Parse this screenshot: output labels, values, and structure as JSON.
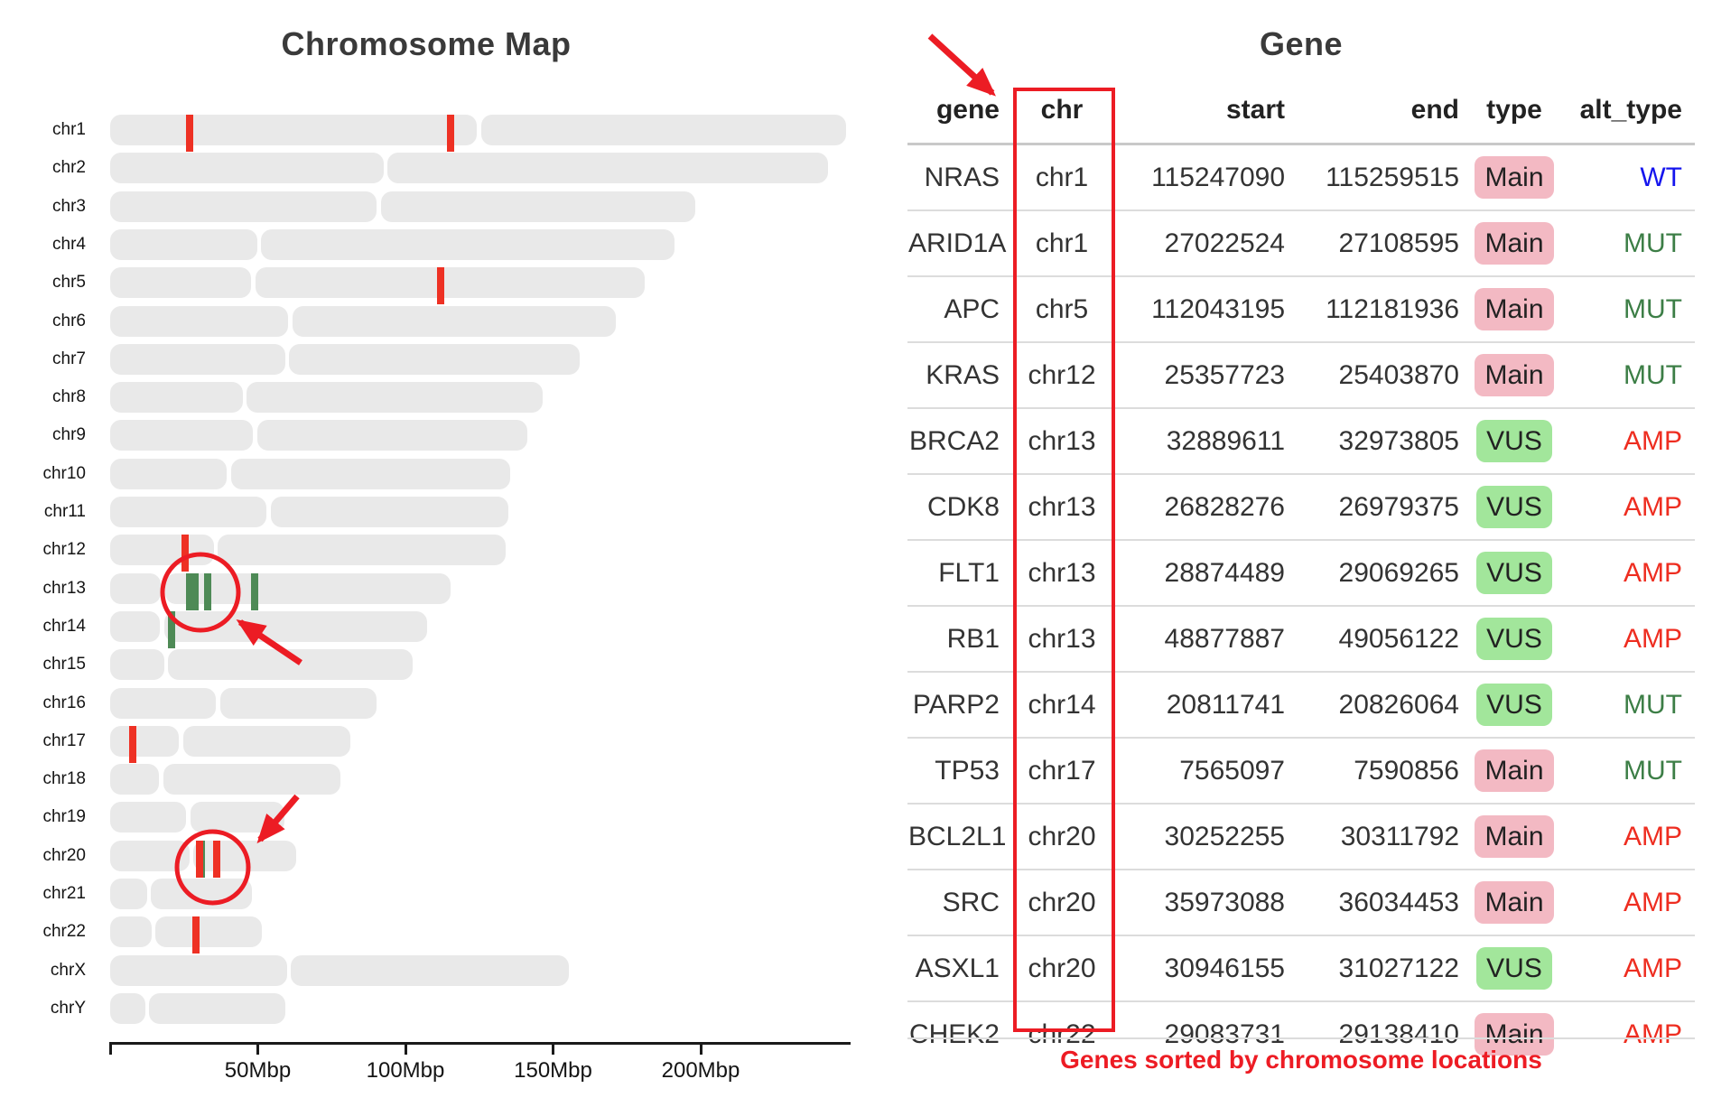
{
  "map": {
    "title": "Chromosome Map"
  },
  "table": {
    "title": "Gene",
    "columns": [
      "gene",
      "chr",
      "start",
      "end",
      "type",
      "alt_type"
    ],
    "rows": [
      {
        "gene": "NRAS",
        "chr": "chr1",
        "start": "115247090",
        "end": "115259515",
        "type": "Main",
        "alt_type": "WT"
      },
      {
        "gene": "ARID1A",
        "chr": "chr1",
        "start": "27022524",
        "end": "27108595",
        "type": "Main",
        "alt_type": "MUT"
      },
      {
        "gene": "APC",
        "chr": "chr5",
        "start": "112043195",
        "end": "112181936",
        "type": "Main",
        "alt_type": "MUT"
      },
      {
        "gene": "KRAS",
        "chr": "chr12",
        "start": "25357723",
        "end": "25403870",
        "type": "Main",
        "alt_type": "MUT"
      },
      {
        "gene": "BRCA2",
        "chr": "chr13",
        "start": "32889611",
        "end": "32973805",
        "type": "VUS",
        "alt_type": "AMP"
      },
      {
        "gene": "CDK8",
        "chr": "chr13",
        "start": "26828276",
        "end": "26979375",
        "type": "VUS",
        "alt_type": "AMP"
      },
      {
        "gene": "FLT1",
        "chr": "chr13",
        "start": "28874489",
        "end": "29069265",
        "type": "VUS",
        "alt_type": "AMP"
      },
      {
        "gene": "RB1",
        "chr": "chr13",
        "start": "48877887",
        "end": "49056122",
        "type": "VUS",
        "alt_type": "AMP"
      },
      {
        "gene": "PARP2",
        "chr": "chr14",
        "start": "20811741",
        "end": "20826064",
        "type": "VUS",
        "alt_type": "MUT"
      },
      {
        "gene": "TP53",
        "chr": "chr17",
        "start": "7565097",
        "end": "7590856",
        "type": "Main",
        "alt_type": "MUT"
      },
      {
        "gene": "BCL2L1",
        "chr": "chr20",
        "start": "30252255",
        "end": "30311792",
        "type": "Main",
        "alt_type": "AMP"
      },
      {
        "gene": "SRC",
        "chr": "chr20",
        "start": "35973088",
        "end": "36034453",
        "type": "Main",
        "alt_type": "AMP"
      },
      {
        "gene": "ASXL1",
        "chr": "chr20",
        "start": "30946155",
        "end": "31027122",
        "type": "VUS",
        "alt_type": "AMP"
      },
      {
        "gene": "CHEK2",
        "chr": "chr22",
        "start": "29083731",
        "end": "29138410",
        "type": "Main",
        "alt_type": "AMP"
      }
    ],
    "caption": "Genes sorted by chromosome locations"
  },
  "colors": {
    "chromosome_bar": "#e9e9e9",
    "marker_main": "#ee3124",
    "marker_vus": "#4e8a56",
    "annotation_red": "#ec1c24",
    "caption_red": "#ed1c24",
    "type_badge": {
      "Main": "#f3b9c3",
      "VUS": "#a2e69b"
    },
    "alt_type_text": {
      "WT": "#1515ee",
      "MUT": "#3c7e46",
      "AMP": "#ee2d20"
    }
  },
  "chart_data": {
    "type": "karyotype",
    "title": "Chromosome Map",
    "x_unit": "Mbp",
    "x_range_mbp": [
      0,
      250
    ],
    "axis_ticks": [
      {
        "mbp": 0,
        "label": ""
      },
      {
        "mbp": 50,
        "label": "50Mbp"
      },
      {
        "mbp": 100,
        "label": "100Mbp"
      },
      {
        "mbp": 150,
        "label": "150Mbp"
      },
      {
        "mbp": 200,
        "label": "200Mbp"
      }
    ],
    "chromosomes": [
      {
        "name": "chr1",
        "length_mbp": 249.25,
        "centromere_mbp": 125.0
      },
      {
        "name": "chr2",
        "length_mbp": 243.2,
        "centromere_mbp": 93.3
      },
      {
        "name": "chr3",
        "length_mbp": 198.02,
        "centromere_mbp": 91.0
      },
      {
        "name": "chr4",
        "length_mbp": 191.15,
        "centromere_mbp": 50.4
      },
      {
        "name": "chr5",
        "length_mbp": 180.92,
        "centromere_mbp": 48.4
      },
      {
        "name": "chr6",
        "length_mbp": 171.12,
        "centromere_mbp": 61.0
      },
      {
        "name": "chr7",
        "length_mbp": 159.14,
        "centromere_mbp": 59.9
      },
      {
        "name": "chr8",
        "length_mbp": 146.36,
        "centromere_mbp": 45.6
      },
      {
        "name": "chr9",
        "length_mbp": 141.21,
        "centromere_mbp": 49.0
      },
      {
        "name": "chr10",
        "length_mbp": 135.53,
        "centromere_mbp": 40.2
      },
      {
        "name": "chr11",
        "length_mbp": 135.01,
        "centromere_mbp": 53.7
      },
      {
        "name": "chr12",
        "length_mbp": 133.85,
        "centromere_mbp": 35.8
      },
      {
        "name": "chr13",
        "length_mbp": 115.17,
        "centromere_mbp": 17.9
      },
      {
        "name": "chr14",
        "length_mbp": 107.35,
        "centromere_mbp": 17.6
      },
      {
        "name": "chr15",
        "length_mbp": 102.53,
        "centromere_mbp": 19.0
      },
      {
        "name": "chr16",
        "length_mbp": 90.35,
        "centromere_mbp": 36.6
      },
      {
        "name": "chr17",
        "length_mbp": 81.2,
        "centromere_mbp": 24.0
      },
      {
        "name": "chr18",
        "length_mbp": 78.08,
        "centromere_mbp": 17.2
      },
      {
        "name": "chr19",
        "length_mbp": 59.13,
        "centromere_mbp": 26.5
      },
      {
        "name": "chr20",
        "length_mbp": 63.03,
        "centromere_mbp": 27.5
      },
      {
        "name": "chr21",
        "length_mbp": 48.13,
        "centromere_mbp": 13.2
      },
      {
        "name": "chr22",
        "length_mbp": 51.3,
        "centromere_mbp": 14.7
      },
      {
        "name": "chrX",
        "length_mbp": 155.27,
        "centromere_mbp": 60.6
      },
      {
        "name": "chrY",
        "length_mbp": 59.37,
        "centromere_mbp": 12.5
      }
    ],
    "markers": [
      {
        "gene": "BRCA2",
        "chr": "chr13",
        "pos_mbp": 32.89,
        "color_key": "vus"
      },
      {
        "gene": "CDK8",
        "chr": "chr13",
        "pos_mbp": 26.828,
        "color_key": "vus"
      },
      {
        "gene": "FLT1",
        "chr": "chr13",
        "pos_mbp": 28.874,
        "color_key": "vus"
      },
      {
        "gene": "RB1",
        "chr": "chr13",
        "pos_mbp": 48.878,
        "color_key": "vus"
      },
      {
        "gene": "PARP2",
        "chr": "chr14",
        "pos_mbp": 20.812,
        "color_key": "vus"
      },
      {
        "gene": "ASXL1",
        "chr": "chr20",
        "pos_mbp": 30.946,
        "color_key": "vus"
      },
      {
        "gene": "NRAS",
        "chr": "chr1",
        "pos_mbp": 115.247,
        "color_key": "main"
      },
      {
        "gene": "ARID1A",
        "chr": "chr1",
        "pos_mbp": 27.023,
        "color_key": "main"
      },
      {
        "gene": "APC",
        "chr": "chr5",
        "pos_mbp": 112.043,
        "color_key": "main"
      },
      {
        "gene": "KRAS",
        "chr": "chr12",
        "pos_mbp": 25.358,
        "color_key": "main"
      },
      {
        "gene": "TP53",
        "chr": "chr17",
        "pos_mbp": 7.565,
        "color_key": "main"
      },
      {
        "gene": "BCL2L1",
        "chr": "chr20",
        "pos_mbp": 30.252,
        "color_key": "main"
      },
      {
        "gene": "SRC",
        "chr": "chr20",
        "pos_mbp": 35.973,
        "color_key": "main"
      },
      {
        "gene": "CHEK2",
        "chr": "chr22",
        "pos_mbp": 29.084,
        "color_key": "main"
      }
    ]
  }
}
